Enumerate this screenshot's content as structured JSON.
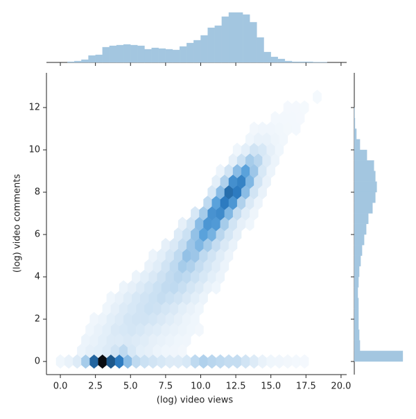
{
  "chart_data": {
    "type": "hexbin",
    "xlabel": "(log) video views",
    "ylabel": "(log) video comments",
    "xlim": [
      -0.99,
      20.4
    ],
    "ylim": [
      -0.62,
      13.64
    ],
    "xticks": [
      {
        "value": 0,
        "label": "0.0"
      },
      2.5,
      {
        "value": 5,
        "label": "5.0"
      },
      7.5,
      {
        "value": 10,
        "label": "10.0"
      },
      12.5,
      {
        "value": 15,
        "label": "15.0"
      },
      17.5,
      {
        "value": 20,
        "label": "20.0"
      }
    ],
    "yticks": [
      0,
      2,
      4,
      6,
      8,
      10,
      12
    ],
    "colormap": [
      "#f5f9fd",
      "#b9d6ee",
      "#5aa2db",
      "#2d7bc0",
      "#194f7e",
      "#0a0c10"
    ],
    "cells": [
      [
        0,
        0,
        10
      ],
      [
        0.6,
        0,
        20
      ],
      [
        1.2,
        0,
        40
      ],
      [
        1.8,
        0,
        120
      ],
      [
        2.4,
        0,
        350
      ],
      [
        3.0,
        0,
        500
      ],
      [
        3.6,
        0,
        380
      ],
      [
        4.2,
        0,
        300
      ],
      [
        4.8,
        0,
        150
      ],
      [
        5.4,
        0,
        90
      ],
      [
        6.0,
        0,
        70
      ],
      [
        6.6,
        0,
        60
      ],
      [
        7.2,
        0,
        50
      ],
      [
        7.8,
        0,
        40
      ],
      [
        8.4,
        0,
        40
      ],
      [
        9.0,
        0,
        50
      ],
      [
        9.6,
        0,
        90
      ],
      [
        10.2,
        0,
        110
      ],
      [
        10.8,
        0,
        100
      ],
      [
        11.4,
        0,
        90
      ],
      [
        12.0,
        0,
        80
      ],
      [
        12.6,
        0,
        80
      ],
      [
        13.2,
        0,
        60
      ],
      [
        13.8,
        0,
        40
      ],
      [
        14.4,
        0,
        20
      ],
      [
        15.0,
        0,
        10
      ],
      [
        15.6,
        0,
        8
      ],
      [
        16.2,
        0,
        5
      ],
      [
        16.8,
        0,
        3
      ],
      [
        17.4,
        0,
        2
      ],
      [
        1.5,
        0.5,
        15
      ],
      [
        2.1,
        0.5,
        25
      ],
      [
        2.7,
        0.5,
        30
      ],
      [
        3.3,
        0.5,
        40
      ],
      [
        3.9,
        0.5,
        60
      ],
      [
        4.5,
        0.5,
        90
      ],
      [
        5.1,
        0.5,
        50
      ],
      [
        5.7,
        0.5,
        30
      ],
      [
        6.3,
        0.5,
        25
      ],
      [
        6.9,
        0.5,
        15
      ],
      [
        7.5,
        0.5,
        10
      ],
      [
        8.1,
        0.5,
        8
      ],
      [
        8.7,
        0.5,
        5
      ],
      [
        1.8,
        1.0,
        15
      ],
      [
        2.4,
        1.0,
        20
      ],
      [
        3.0,
        1.0,
        30
      ],
      [
        3.6,
        1.0,
        40
      ],
      [
        4.2,
        1.0,
        40
      ],
      [
        4.8,
        1.0,
        45
      ],
      [
        5.4,
        1.0,
        40
      ],
      [
        6.0,
        1.0,
        35
      ],
      [
        6.6,
        1.0,
        25
      ],
      [
        7.2,
        1.0,
        20
      ],
      [
        7.8,
        1.0,
        15
      ],
      [
        8.4,
        1.0,
        10
      ],
      [
        9.0,
        1.0,
        8
      ],
      [
        2.1,
        1.5,
        10
      ],
      [
        2.7,
        1.5,
        20
      ],
      [
        3.3,
        1.5,
        30
      ],
      [
        3.9,
        1.5,
        45
      ],
      [
        4.5,
        1.5,
        50
      ],
      [
        5.1,
        1.5,
        55
      ],
      [
        5.7,
        1.5,
        50
      ],
      [
        6.3,
        1.5,
        40
      ],
      [
        6.9,
        1.5,
        35
      ],
      [
        7.5,
        1.5,
        25
      ],
      [
        8.1,
        1.5,
        20
      ],
      [
        8.7,
        1.5,
        15
      ],
      [
        9.3,
        1.5,
        10
      ],
      [
        9.9,
        1.5,
        5
      ],
      [
        2.4,
        2.0,
        8
      ],
      [
        3.0,
        2.0,
        15
      ],
      [
        3.6,
        2.0,
        30
      ],
      [
        4.2,
        2.0,
        40
      ],
      [
        4.8,
        2.0,
        55
      ],
      [
        5.4,
        2.0,
        60
      ],
      [
        6.0,
        2.0,
        60
      ],
      [
        6.6,
        2.0,
        55
      ],
      [
        7.2,
        2.0,
        45
      ],
      [
        7.8,
        2.0,
        35
      ],
      [
        8.4,
        2.0,
        25
      ],
      [
        9.0,
        2.0,
        15
      ],
      [
        9.6,
        2.0,
        10
      ],
      [
        3.3,
        2.5,
        10
      ],
      [
        3.9,
        2.5,
        25
      ],
      [
        4.5,
        2.5,
        40
      ],
      [
        5.1,
        2.5,
        50
      ],
      [
        5.7,
        2.5,
        60
      ],
      [
        6.3,
        2.5,
        70
      ],
      [
        6.9,
        2.5,
        65
      ],
      [
        7.5,
        2.5,
        55
      ],
      [
        8.1,
        2.5,
        45
      ],
      [
        8.7,
        2.5,
        30
      ],
      [
        9.3,
        2.5,
        20
      ],
      [
        9.9,
        2.5,
        10
      ],
      [
        3.6,
        3.0,
        10
      ],
      [
        4.2,
        3.0,
        20
      ],
      [
        4.8,
        3.0,
        35
      ],
      [
        5.4,
        3.0,
        50
      ],
      [
        6.0,
        3.0,
        60
      ],
      [
        6.6,
        3.0,
        70
      ],
      [
        7.2,
        3.0,
        80
      ],
      [
        7.8,
        3.0,
        70
      ],
      [
        8.4,
        3.0,
        60
      ],
      [
        9.0,
        3.0,
        45
      ],
      [
        9.6,
        3.0,
        30
      ],
      [
        10.2,
        3.0,
        15
      ],
      [
        4.5,
        3.5,
        15
      ],
      [
        5.1,
        3.5,
        25
      ],
      [
        5.7,
        3.5,
        40
      ],
      [
        6.3,
        3.5,
        55
      ],
      [
        6.9,
        3.5,
        70
      ],
      [
        7.5,
        3.5,
        85
      ],
      [
        8.1,
        3.5,
        90
      ],
      [
        8.7,
        3.5,
        75
      ],
      [
        9.3,
        3.5,
        55
      ],
      [
        9.9,
        3.5,
        40
      ],
      [
        10.5,
        3.5,
        20
      ],
      [
        11.1,
        3.5,
        10
      ],
      [
        5.4,
        4.0,
        15
      ],
      [
        6.0,
        4.0,
        30
      ],
      [
        6.6,
        4.0,
        45
      ],
      [
        7.2,
        4.0,
        65
      ],
      [
        7.8,
        4.0,
        85
      ],
      [
        8.4,
        4.0,
        100
      ],
      [
        9.0,
        4.0,
        90
      ],
      [
        9.6,
        4.0,
        70
      ],
      [
        10.2,
        4.0,
        50
      ],
      [
        10.8,
        4.0,
        30
      ],
      [
        11.4,
        4.0,
        15
      ],
      [
        6.3,
        4.5,
        20
      ],
      [
        6.9,
        4.5,
        35
      ],
      [
        7.5,
        4.5,
        60
      ],
      [
        8.1,
        4.5,
        90
      ],
      [
        8.7,
        4.5,
        120
      ],
      [
        9.3,
        4.5,
        110
      ],
      [
        9.9,
        4.5,
        80
      ],
      [
        10.5,
        4.5,
        55
      ],
      [
        11.1,
        4.5,
        35
      ],
      [
        11.7,
        4.5,
        15
      ],
      [
        6.6,
        5.0,
        15
      ],
      [
        7.2,
        5.0,
        30
      ],
      [
        7.8,
        5.0,
        55
      ],
      [
        8.4,
        5.0,
        90
      ],
      [
        9.0,
        5.0,
        140
      ],
      [
        9.6,
        5.0,
        130
      ],
      [
        10.2,
        5.0,
        90
      ],
      [
        10.8,
        5.0,
        60
      ],
      [
        11.4,
        5.0,
        35
      ],
      [
        12.0,
        5.0,
        15
      ],
      [
        7.5,
        5.5,
        25
      ],
      [
        8.1,
        5.5,
        45
      ],
      [
        8.7,
        5.5,
        80
      ],
      [
        9.3,
        5.5,
        130
      ],
      [
        9.9,
        5.5,
        160
      ],
      [
        10.5,
        5.5,
        120
      ],
      [
        11.1,
        5.5,
        80
      ],
      [
        11.7,
        5.5,
        45
      ],
      [
        12.3,
        5.5,
        20
      ],
      [
        8.4,
        6.0,
        40
      ],
      [
        9.0,
        6.0,
        70
      ],
      [
        9.6,
        6.0,
        140
      ],
      [
        10.2,
        6.0,
        200
      ],
      [
        10.8,
        6.0,
        170
      ],
      [
        11.4,
        6.0,
        100
      ],
      [
        12.0,
        6.0,
        55
      ],
      [
        12.6,
        6.0,
        25
      ],
      [
        8.7,
        6.5,
        25
      ],
      [
        9.3,
        6.5,
        60
      ],
      [
        9.9,
        6.5,
        150
      ],
      [
        10.5,
        6.5,
        230
      ],
      [
        11.1,
        6.5,
        220
      ],
      [
        11.7,
        6.5,
        120
      ],
      [
        12.3,
        6.5,
        60
      ],
      [
        12.9,
        6.5,
        25
      ],
      [
        13.5,
        6.5,
        10
      ],
      [
        9.6,
        7.0,
        50
      ],
      [
        10.2,
        7.0,
        120
      ],
      [
        10.8,
        7.0,
        240
      ],
      [
        11.4,
        7.0,
        260
      ],
      [
        12.0,
        7.0,
        160
      ],
      [
        12.6,
        7.0,
        80
      ],
      [
        13.2,
        7.0,
        35
      ],
      [
        13.8,
        7.0,
        12
      ],
      [
        10.5,
        7.5,
        90
      ],
      [
        11.1,
        7.5,
        200
      ],
      [
        11.7,
        7.5,
        300
      ],
      [
        12.3,
        7.5,
        230
      ],
      [
        12.9,
        7.5,
        110
      ],
      [
        13.5,
        7.5,
        45
      ],
      [
        14.1,
        7.5,
        15
      ],
      [
        10.8,
        8.0,
        50
      ],
      [
        11.4,
        8.0,
        150
      ],
      [
        12.0,
        8.0,
        330
      ],
      [
        12.6,
        8.0,
        300
      ],
      [
        13.2,
        8.0,
        150
      ],
      [
        13.8,
        8.0,
        60
      ],
      [
        14.4,
        8.0,
        20
      ],
      [
        11.1,
        8.5,
        30
      ],
      [
        11.7,
        8.5,
        110
      ],
      [
        12.3,
        8.5,
        250
      ],
      [
        12.9,
        8.5,
        280
      ],
      [
        13.5,
        8.5,
        160
      ],
      [
        14.1,
        8.5,
        60
      ],
      [
        14.7,
        8.5,
        20
      ],
      [
        11.4,
        9.0,
        15
      ],
      [
        12.0,
        9.0,
        60
      ],
      [
        12.6,
        9.0,
        150
      ],
      [
        13.2,
        9.0,
        200
      ],
      [
        13.8,
        9.0,
        130
      ],
      [
        14.4,
        9.0,
        50
      ],
      [
        15.0,
        9.0,
        15
      ],
      [
        12.3,
        9.5,
        25
      ],
      [
        12.9,
        9.5,
        70
      ],
      [
        13.5,
        9.5,
        120
      ],
      [
        14.1,
        9.5,
        100
      ],
      [
        14.7,
        9.5,
        40
      ],
      [
        15.3,
        9.5,
        15
      ],
      [
        12.6,
        10.0,
        10
      ],
      [
        13.2,
        10.0,
        30
      ],
      [
        13.8,
        10.0,
        60
      ],
      [
        14.4,
        10.0,
        50
      ],
      [
        15.0,
        10.0,
        25
      ],
      [
        15.6,
        10.0,
        10
      ],
      [
        13.5,
        10.5,
        10
      ],
      [
        14.1,
        10.5,
        20
      ],
      [
        14.7,
        10.5,
        20
      ],
      [
        15.3,
        10.5,
        12
      ],
      [
        15.9,
        10.5,
        6
      ],
      [
        13.8,
        11.0,
        5
      ],
      [
        14.4,
        11.0,
        8
      ],
      [
        15.0,
        11.0,
        8
      ],
      [
        15.6,
        11.0,
        6
      ],
      [
        16.2,
        11.0,
        4
      ],
      [
        16.8,
        11.0,
        3
      ],
      [
        15.3,
        11.5,
        3
      ],
      [
        15.9,
        11.5,
        3
      ],
      [
        16.5,
        11.5,
        3
      ],
      [
        17.1,
        11.5,
        2
      ],
      [
        16.2,
        12.0,
        2
      ],
      [
        16.8,
        12.0,
        2
      ],
      [
        17.4,
        12.0,
        1
      ],
      [
        18.3,
        12.5,
        1
      ]
    ],
    "hist_color": "#a3c6e0",
    "top_hist": {
      "bins": [
        0,
        0.5,
        1,
        1.5,
        2,
        2.5,
        3,
        3.5,
        4,
        4.5,
        5,
        5.5,
        6,
        6.5,
        7,
        7.5,
        8,
        8.5,
        9,
        9.5,
        10,
        10.5,
        11,
        11.5,
        12,
        12.5,
        13,
        13.5,
        14,
        14.5,
        15,
        15.5,
        16,
        16.5,
        17,
        17.5,
        18,
        18.5,
        19
      ],
      "counts": [
        0,
        1,
        2,
        4,
        10,
        11,
        22,
        24,
        25,
        26,
        25,
        24,
        19,
        21,
        20,
        19,
        18,
        23,
        28,
        32,
        39,
        50,
        53,
        66,
        72,
        72,
        69,
        58,
        36,
        15,
        8,
        5,
        2,
        1,
        1,
        1,
        0.5,
        0.5
      ]
    },
    "right_hist": {
      "bins": [
        0,
        0.5,
        1,
        1.5,
        2,
        2.5,
        3,
        3.5,
        4,
        4.5,
        5,
        5.5,
        6,
        6.5,
        7,
        7.5,
        8,
        8.5,
        9,
        9.5,
        10,
        10.5,
        11,
        11.5,
        12
      ],
      "counts": [
        69,
        8,
        7,
        6,
        6,
        6,
        5,
        6,
        7,
        9,
        11,
        14,
        17,
        20,
        26,
        30,
        32,
        30,
        28,
        18,
        8,
        3,
        1,
        0.5
      ]
    }
  }
}
